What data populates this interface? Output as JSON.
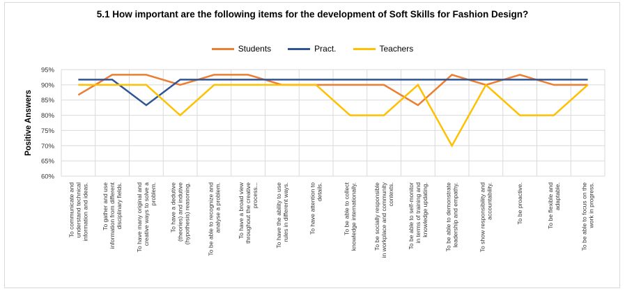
{
  "chart_data": {
    "type": "line",
    "title": "5.1 How important are the following items for the development of Soft Skills for Fashion Design?",
    "ylabel": "Positive Answers",
    "xlabel": "",
    "ylim": [
      60,
      95
    ],
    "yticks": [
      "60%",
      "65%",
      "70%",
      "75%",
      "80%",
      "85%",
      "90%",
      "95%"
    ],
    "grid": true,
    "legend_position": "top",
    "categories": [
      "To communicate and understand technical information and ideas.",
      "To gather and use information from different disciplinary fields.",
      "To have many original and creative ways to solve a problem.",
      "To have a dedutive (theories) and indutive (hypothesis) reasoning.",
      "To be able to recognize and analyse a problem.",
      "To have a broad view throughout the creative process...",
      "To have the ability to use rules in different ways.",
      "To have attention to details.",
      "To be able to collect knowledge internationally.",
      "To be socially responsible in workplace and community contexts.",
      "To be able to self-monitor in terms of training and knowledge updating.",
      "To be able to demonstrate leadership and empathy.",
      "To show responsibility and accountability.",
      "To be proactive.",
      "To be flexible and adaptable.",
      "To be able to focus on the work in progress."
    ],
    "series": [
      {
        "name": "Students",
        "color": "#ED7D31",
        "values": [
          86.7,
          93.3,
          93.3,
          90,
          93.3,
          93.3,
          90,
          90,
          90,
          90,
          83.3,
          93.3,
          90,
          93.3,
          90,
          90
        ]
      },
      {
        "name": "Pract.",
        "color": "#2F5597",
        "values": [
          91.7,
          91.7,
          83.3,
          91.7,
          91.7,
          91.7,
          91.7,
          91.7,
          91.7,
          91.7,
          91.7,
          91.7,
          91.7,
          91.7,
          91.7,
          91.7
        ]
      },
      {
        "name": "Teachers",
        "color": "#FFC000",
        "values": [
          90,
          90,
          90,
          80,
          90,
          90,
          90,
          90,
          80,
          80,
          90,
          70,
          90,
          80,
          80,
          90
        ]
      }
    ]
  }
}
